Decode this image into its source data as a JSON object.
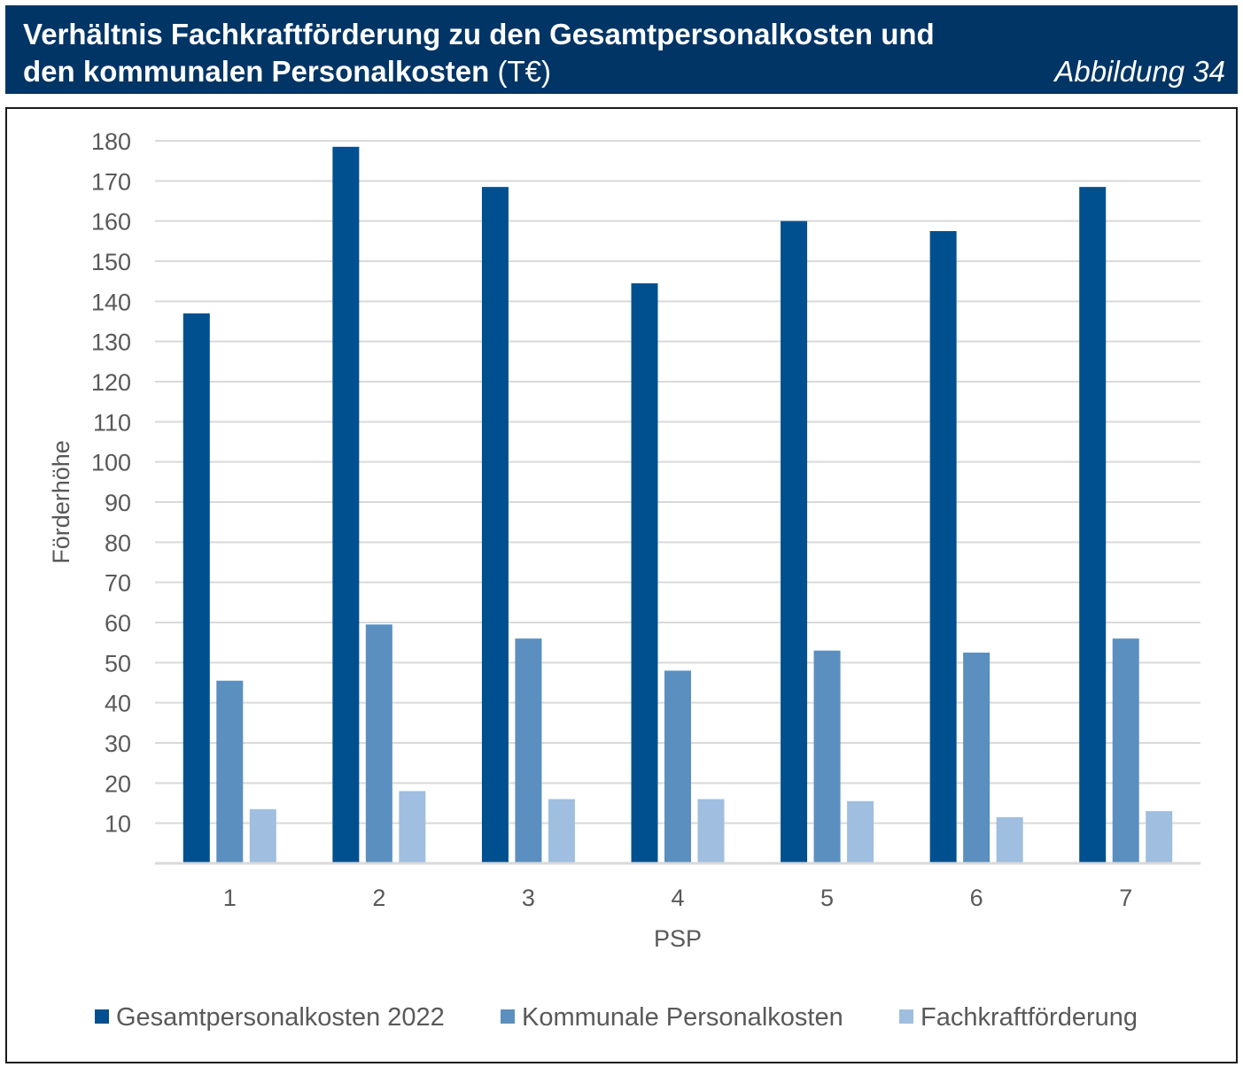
{
  "header": {
    "title_line1": "Verhältnis Fachkraftförderung zu den Gesamtpersonalkosten und",
    "title_line2_bold": "den kommunalen Personalkosten",
    "title_line2_unit": "(T€)",
    "figure_label": "Abbildung 34"
  },
  "chart_data": {
    "type": "bar",
    "xlabel": "PSP",
    "ylabel": "Förderhöhe",
    "categories": [
      "1",
      "2",
      "3",
      "4",
      "5",
      "6",
      "7"
    ],
    "ylim": [
      0,
      180
    ],
    "yticks": [
      10,
      20,
      30,
      40,
      50,
      60,
      70,
      80,
      90,
      100,
      110,
      120,
      130,
      140,
      150,
      160,
      170,
      180
    ],
    "grid": true,
    "legend_position": "bottom",
    "series": [
      {
        "name": "Gesamtpersonalkosten 2022",
        "color": "#00508F",
        "values": [
          137,
          178.5,
          168.5,
          144.5,
          160,
          157.5,
          168.5
        ]
      },
      {
        "name": "Kommunale Personalkosten",
        "color": "#5A8FC0",
        "values": [
          45.5,
          59.5,
          56,
          48,
          53,
          52.5,
          56
        ]
      },
      {
        "name": "Fachkraftförderung",
        "color": "#9FBEE0",
        "values": [
          13.5,
          18,
          16,
          16,
          15.5,
          11.5,
          13
        ]
      }
    ]
  }
}
